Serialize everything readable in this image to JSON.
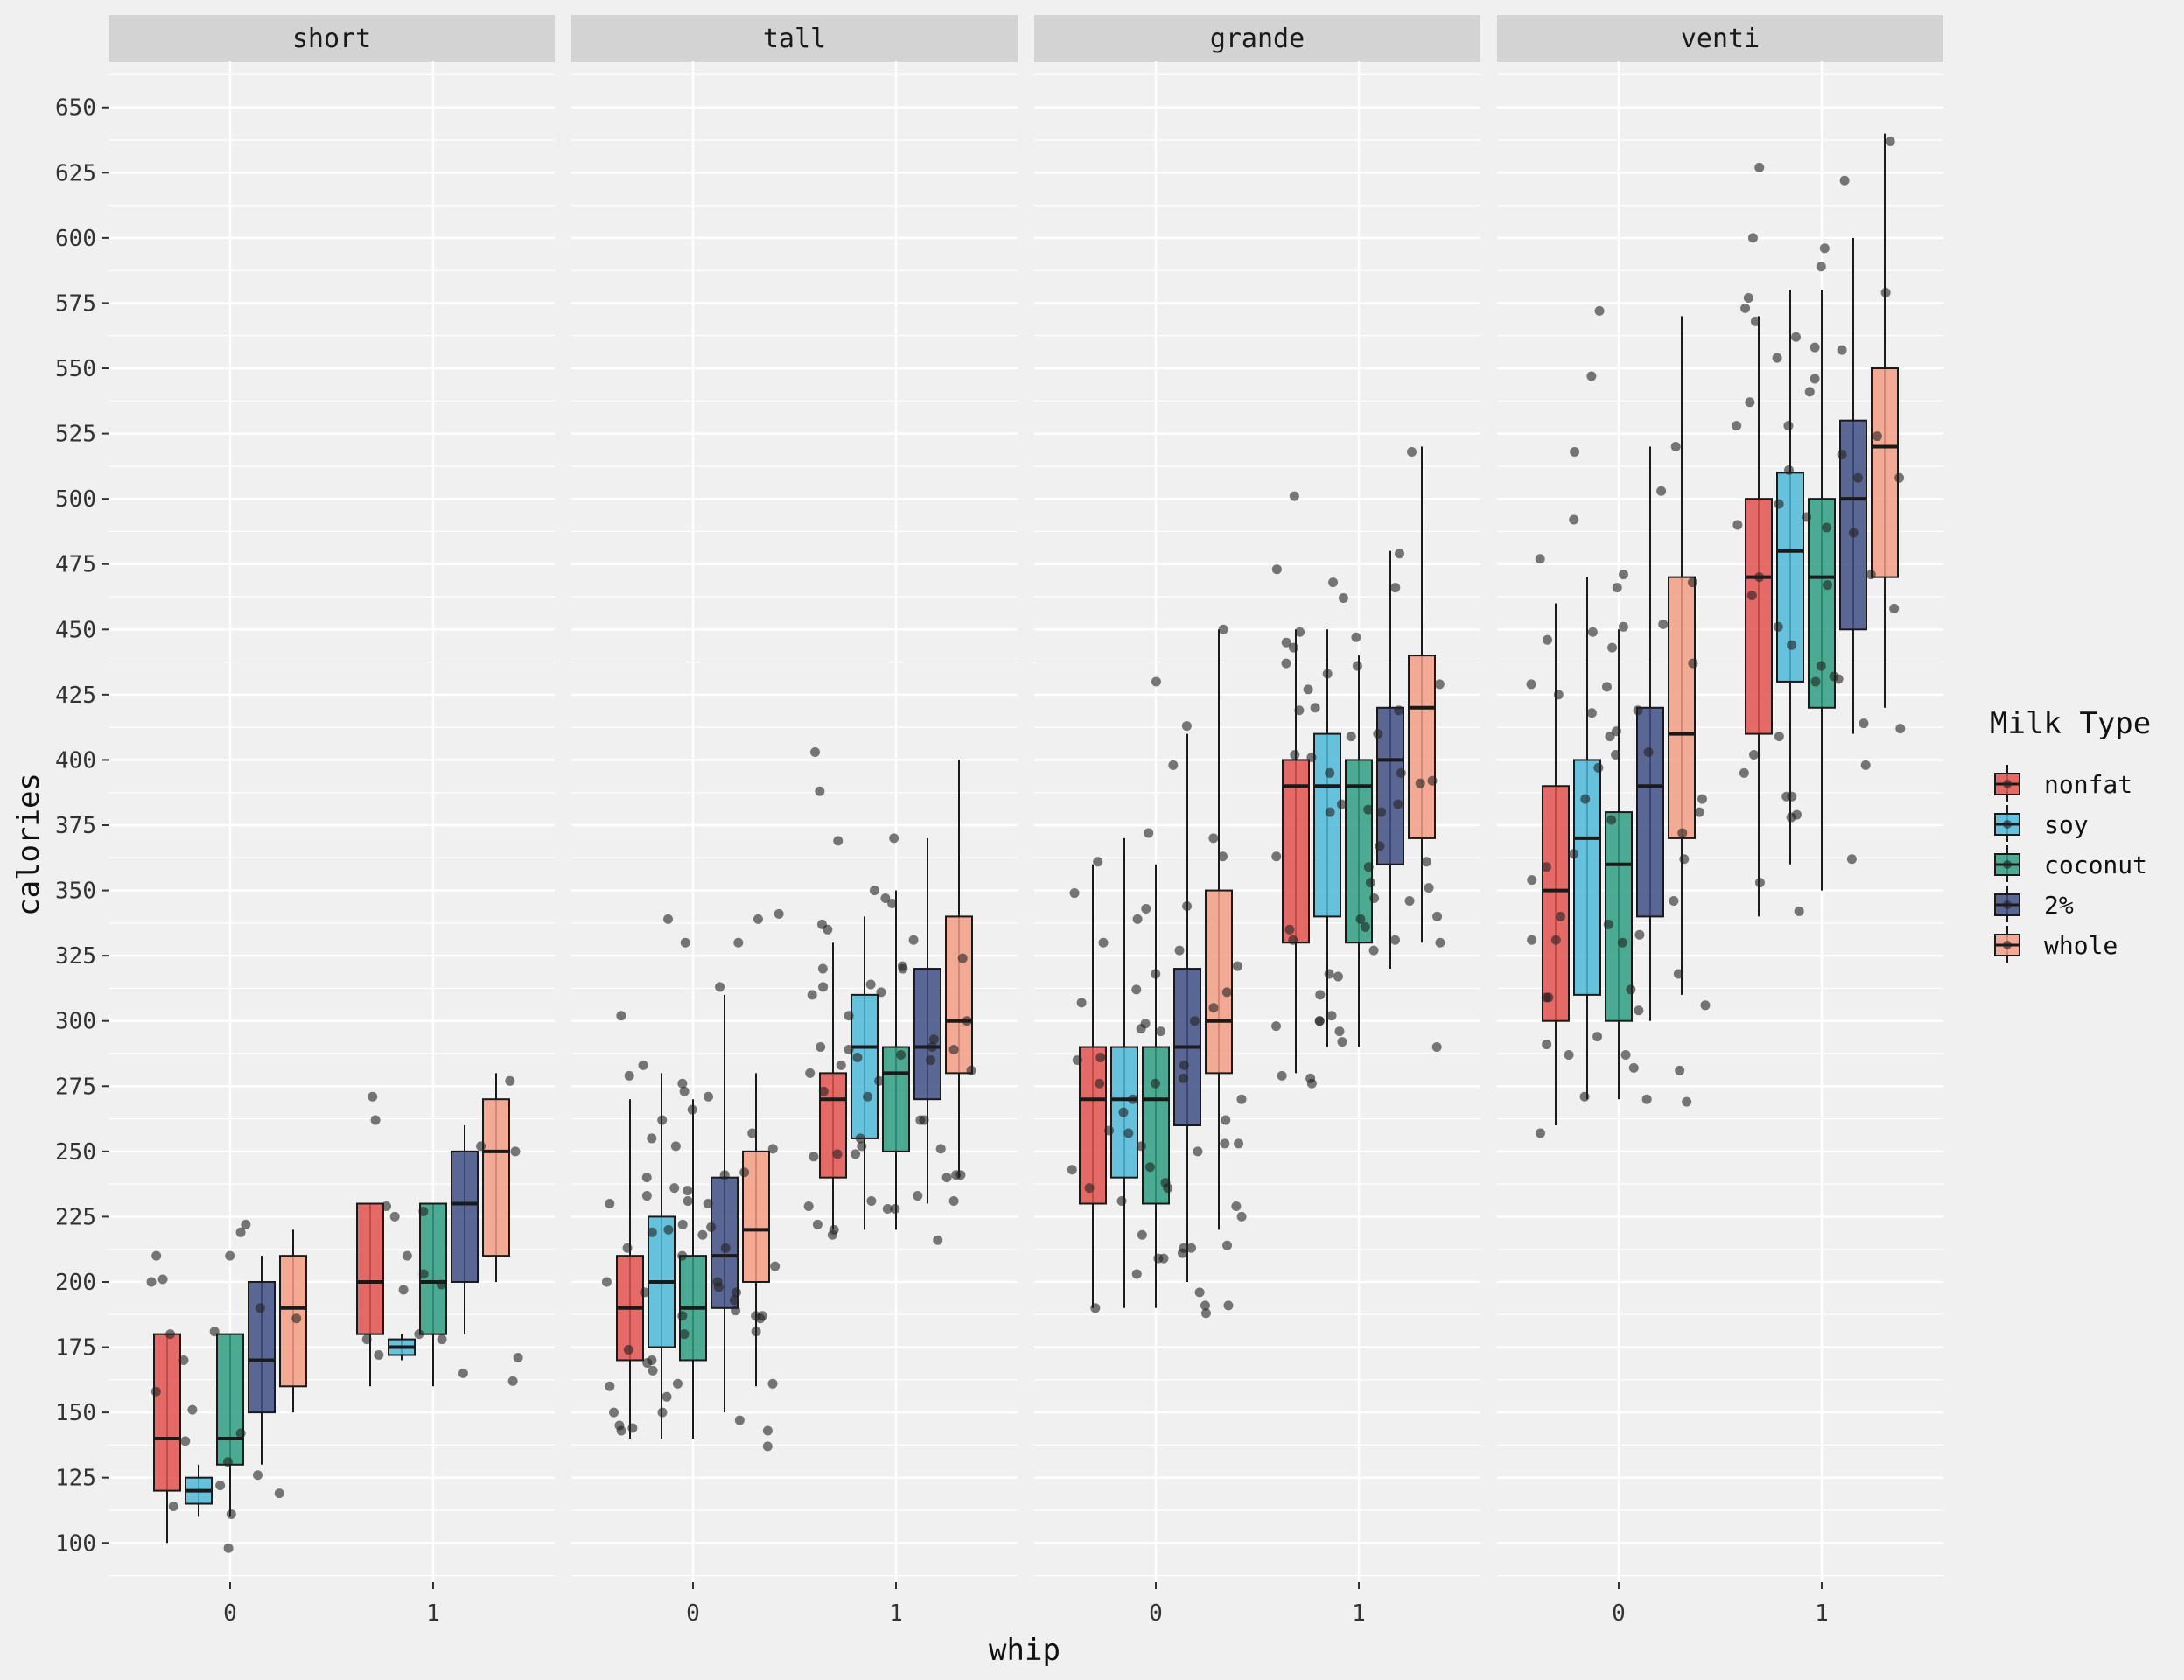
{
  "chart_data": {
    "type": "box",
    "facet_var": "size",
    "panels": [
      "short",
      "tall",
      "grande",
      "venti"
    ],
    "x_categories": [
      "0",
      "1"
    ],
    "xlabel": "whip",
    "ylabel": "calories",
    "y_ticks": [
      100,
      125,
      150,
      175,
      200,
      225,
      250,
      275,
      300,
      325,
      350,
      375,
      400,
      425,
      450,
      475,
      500,
      525,
      550,
      575,
      600,
      625,
      650
    ],
    "ylim": [
      85,
      665
    ],
    "grid": true,
    "legend_title": "Milk Type",
    "legend_position": "right",
    "series": [
      {
        "name": "nonfat",
        "color": "#E2524F"
      },
      {
        "name": "soy",
        "color": "#4CB9D8"
      },
      {
        "name": "coconut",
        "color": "#2E9E80"
      },
      {
        "name": "2%",
        "color": "#3F4E83"
      },
      {
        "name": "whole",
        "color": "#F39E84"
      }
    ],
    "boxes": {
      "short": {
        "0": [
          {
            "min": 100,
            "q1": 120,
            "median": 140,
            "q3": 180,
            "max": 180
          },
          {
            "min": 110,
            "q1": 115,
            "median": 120,
            "q3": 125,
            "max": 130
          },
          {
            "min": 110,
            "q1": 130,
            "median": 140,
            "q3": 180,
            "max": 180
          },
          {
            "min": 130,
            "q1": 150,
            "median": 170,
            "q3": 200,
            "max": 210
          },
          {
            "min": 150,
            "q1": 160,
            "median": 190,
            "q3": 210,
            "max": 220
          }
        ],
        "1": [
          {
            "min": 160,
            "q1": 180,
            "median": 200,
            "q3": 230,
            "max": 230
          },
          {
            "min": 170,
            "q1": 172,
            "median": 175,
            "q3": 178,
            "max": 180
          },
          {
            "min": 160,
            "q1": 180,
            "median": 200,
            "q3": 230,
            "max": 230
          },
          {
            "min": 180,
            "q1": 200,
            "median": 230,
            "q3": 250,
            "max": 260
          },
          {
            "min": 200,
            "q1": 210,
            "median": 250,
            "q3": 270,
            "max": 280
          }
        ]
      },
      "tall": {
        "0": [
          {
            "min": 140,
            "q1": 170,
            "median": 190,
            "q3": 210,
            "max": 270
          },
          {
            "min": 140,
            "q1": 175,
            "median": 200,
            "q3": 225,
            "max": 280
          },
          {
            "min": 140,
            "q1": 170,
            "median": 190,
            "q3": 210,
            "max": 270
          },
          {
            "min": 150,
            "q1": 190,
            "median": 210,
            "q3": 240,
            "max": 310
          },
          {
            "min": 160,
            "q1": 200,
            "median": 220,
            "q3": 250,
            "max": 280
          }
        ],
        "1": [
          {
            "min": 220,
            "q1": 240,
            "median": 270,
            "q3": 280,
            "max": 330
          },
          {
            "min": 220,
            "q1": 255,
            "median": 290,
            "q3": 310,
            "max": 340
          },
          {
            "min": 220,
            "q1": 250,
            "median": 280,
            "q3": 290,
            "max": 350
          },
          {
            "min": 230,
            "q1": 270,
            "median": 290,
            "q3": 320,
            "max": 370
          },
          {
            "min": 240,
            "q1": 280,
            "median": 300,
            "q3": 340,
            "max": 400
          }
        ]
      },
      "grande": {
        "0": [
          {
            "min": 190,
            "q1": 230,
            "median": 270,
            "q3": 290,
            "max": 360
          },
          {
            "min": 190,
            "q1": 240,
            "median": 270,
            "q3": 290,
            "max": 370
          },
          {
            "min": 190,
            "q1": 230,
            "median": 270,
            "q3": 290,
            "max": 360
          },
          {
            "min": 200,
            "q1": 260,
            "median": 290,
            "q3": 320,
            "max": 410
          },
          {
            "min": 220,
            "q1": 280,
            "median": 300,
            "q3": 350,
            "max": 450
          }
        ],
        "1": [
          {
            "min": 280,
            "q1": 330,
            "median": 390,
            "q3": 400,
            "max": 450
          },
          {
            "min": 290,
            "q1": 340,
            "median": 390,
            "q3": 410,
            "max": 450
          },
          {
            "min": 290,
            "q1": 330,
            "median": 390,
            "q3": 400,
            "max": 440
          },
          {
            "min": 320,
            "q1": 360,
            "median": 400,
            "q3": 420,
            "max": 480
          },
          {
            "min": 330,
            "q1": 370,
            "median": 420,
            "q3": 440,
            "max": 520
          }
        ]
      },
      "venti": {
        "0": [
          {
            "min": 260,
            "q1": 300,
            "median": 350,
            "q3": 390,
            "max": 460
          },
          {
            "min": 270,
            "q1": 310,
            "median": 370,
            "q3": 400,
            "max": 470
          },
          {
            "min": 270,
            "q1": 300,
            "median": 360,
            "q3": 380,
            "max": 450
          },
          {
            "min": 300,
            "q1": 340,
            "median": 390,
            "q3": 420,
            "max": 520
          },
          {
            "min": 310,
            "q1": 370,
            "median": 410,
            "q3": 470,
            "max": 570
          }
        ],
        "1": [
          {
            "min": 340,
            "q1": 410,
            "median": 470,
            "q3": 500,
            "max": 570
          },
          {
            "min": 360,
            "q1": 430,
            "median": 480,
            "q3": 510,
            "max": 580
          },
          {
            "min": 350,
            "q1": 420,
            "median": 470,
            "q3": 500,
            "max": 580
          },
          {
            "min": 410,
            "q1": 450,
            "median": 500,
            "q3": 530,
            "max": 600
          },
          {
            "min": 420,
            "q1": 470,
            "median": 520,
            "q3": 550,
            "max": 640
          }
        ]
      }
    },
    "points": {
      "short": {
        "0": [
          98,
          142,
          201,
          139,
          122,
          111,
          210,
          186,
          222,
          181,
          151,
          119,
          126,
          158,
          210,
          170,
          190,
          180,
          219,
          131,
          114,
          200
        ],
        "1": [
          277,
          250,
          178,
          227,
          162,
          172,
          180,
          178,
          165,
          225,
          262,
          171,
          203,
          229,
          199,
          197,
          271,
          252,
          210
        ]
      },
      "tall": {
        "0": [
          156,
          145,
          137,
          169,
          186,
          231,
          240,
          221,
          252,
          330,
          313,
          279,
          196,
          180,
          143,
          150,
          161,
          241,
          198,
          161,
          150,
          210,
          266,
          187,
          257,
          273,
          276,
          255,
          233,
          189,
          174,
          166,
          147,
          187,
          206,
          143,
          181,
          196,
          200,
          218,
          230,
          262,
          339,
          283,
          236,
          213,
          193,
          219,
          251,
          200,
          220,
          230,
          222,
          302,
          341,
          330,
          339,
          271,
          235,
          213,
          242,
          187,
          170,
          160,
          144
        ],
        "1": [
          290,
          285,
          262,
          241,
          289,
          231,
          369,
          403,
          320,
          310,
          321,
          289,
          241,
          220,
          228,
          222,
          286,
          370,
          388,
          314,
          302,
          255,
          240,
          218,
          249,
          229,
          233,
          273,
          277,
          335,
          345,
          311,
          280,
          251,
          228,
          216,
          271,
          281,
          293,
          262,
          249,
          231,
          337,
          324,
          313,
          290,
          283,
          252,
          248,
          331,
          347,
          350,
          320,
          300,
          287
        ]
      },
      "grande": {
        "0": [
          218,
          236,
          262,
          283,
          318,
          311,
          344,
          372,
          321,
          450,
          297,
          276,
          213,
          188,
          191,
          209,
          270,
          327,
          370,
          299,
          307,
          253,
          238,
          211,
          203,
          196,
          191,
          430,
          343,
          363,
          300,
          285,
          270,
          244,
          225,
          213,
          190,
          413,
          361,
          330,
          296,
          265,
          243,
          229,
          209,
          349,
          312,
          286,
          278,
          258,
          250,
          231,
          214,
          398,
          339,
          305,
          276,
          257,
          252,
          253,
          236
        ],
        "1": [
          437,
          449,
          447,
          420,
          383,
          339,
          318,
          298,
          279,
          395,
          409,
          381,
          351,
          335,
          292,
          278,
          296,
          473,
          443,
          419,
          391,
          363,
          336,
          310,
          302,
          276,
          479,
          436,
          401,
          380,
          361,
          340,
          317,
          290,
          518,
          462,
          445,
          427,
          402,
          383,
          347,
          330,
          300,
          468,
          433,
          419,
          392,
          367,
          346,
          331,
          300,
          327,
          501,
          466,
          429,
          410,
          395,
          380,
          359,
          353,
          331
        ]
      },
      "venti": {
        "0": [
          572,
          520,
          503,
          471,
          451,
          419,
          397,
          359,
          331,
          294,
          468,
          452,
          437,
          409,
          372,
          337,
          309,
          269,
          547,
          518,
          492,
          477,
          449,
          418,
          385,
          346,
          304,
          287,
          257,
          443,
          425,
          402,
          385,
          364,
          330,
          312,
          287,
          282,
          270,
          466,
          446,
          429,
          411,
          377,
          354,
          333,
          309,
          291,
          271,
          428,
          403,
          380,
          362,
          340,
          331,
          318,
          306,
          281
        ],
        "1": [
          398,
          432,
          458,
          490,
          528,
          557,
          573,
          622,
          342,
          386,
          412,
          431,
          470,
          487,
          508,
          528,
          554,
          568,
          378,
          395,
          409,
          436,
          467,
          489,
          508,
          537,
          562,
          577,
          627,
          353,
          386,
          402,
          444,
          463,
          493,
          511,
          524,
          546,
          596,
          637,
          362,
          379,
          414,
          430,
          451,
          471,
          498,
          517,
          541,
          558,
          579,
          600,
          589
        ]
      }
    }
  }
}
